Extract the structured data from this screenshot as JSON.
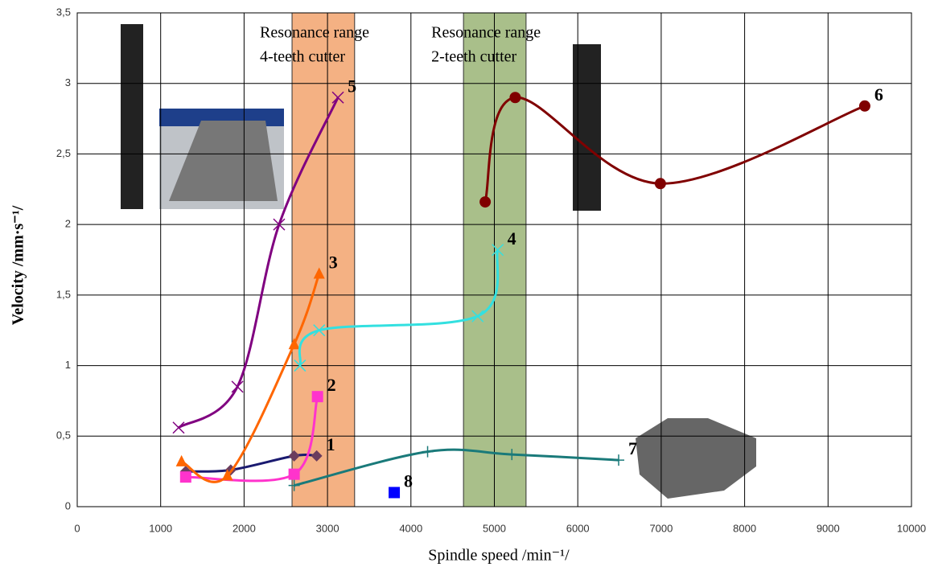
{
  "chart_data": {
    "type": "line",
    "xlabel": "Spindle speed /min⁻¹/",
    "ylabel": "Velocity /mm·s⁻¹/",
    "xlim": [
      0,
      10000
    ],
    "xticks": [
      0,
      1000,
      2000,
      3000,
      4000,
      5000,
      6000,
      7000,
      8000,
      9000,
      10000
    ],
    "ylim": [
      0,
      3.5
    ],
    "yticks": [
      0,
      {
        "value": 0.5,
        "label": "0,5"
      },
      1,
      {
        "value": 1.5,
        "label": "1,5"
      },
      2,
      {
        "value": 2.5,
        "label": "2,5"
      },
      3,
      {
        "value": 3.5,
        "label": "3,5"
      }
    ],
    "grid": true,
    "bands": [
      {
        "xlim": [
          2575,
          3325
        ],
        "color": "#f4b183",
        "label": [
          "Resonance range",
          "4-teeth cutter"
        ]
      },
      {
        "xlim": [
          4630,
          5380
        ],
        "color": "#a9bf8a",
        "label": [
          "Resonance range",
          "2-teeth cutter"
        ]
      }
    ],
    "series": [
      {
        "name": "1",
        "color": "#1a1a70",
        "marker": "diamond",
        "x": [
          1300,
          1840,
          2600,
          2870
        ],
        "values": [
          0.25,
          0.26,
          0.36,
          0.36
        ]
      },
      {
        "name": "2",
        "color": "#ff33cc",
        "marker": "square",
        "x": [
          1300,
          2600,
          2880
        ],
        "values": [
          0.21,
          0.23,
          0.78
        ]
      },
      {
        "name": "3",
        "color": "#ff6600",
        "marker": "triangle",
        "x": [
          1250,
          1800,
          2600,
          2900
        ],
        "values": [
          0.32,
          0.22,
          1.15,
          1.65
        ]
      },
      {
        "name": "4",
        "color": "#33e0e0",
        "marker": "x",
        "x": [
          2670,
          2900,
          4800,
          5040
        ],
        "values": [
          1.0,
          1.25,
          1.35,
          1.82
        ]
      },
      {
        "name": "5",
        "color": "#800080",
        "marker": "x",
        "x": [
          1215,
          1920,
          2420,
          3125
        ],
        "values": [
          0.56,
          0.85,
          2.0,
          2.9
        ]
      },
      {
        "name": "6",
        "color": "#800000",
        "marker": "circle",
        "x": [
          4890,
          5250,
          6990,
          9440
        ],
        "values": [
          2.16,
          2.9,
          2.29,
          2.84
        ]
      },
      {
        "name": "7",
        "color": "#1a7a7a",
        "marker": "plus",
        "x": [
          2600,
          4200,
          5210,
          6490
        ],
        "values": [
          0.15,
          0.39,
          0.37,
          0.33
        ]
      },
      {
        "name": "8",
        "color": "#0000ff",
        "marker": "square",
        "x": [
          3800
        ],
        "values": [
          0.1
        ]
      }
    ]
  }
}
